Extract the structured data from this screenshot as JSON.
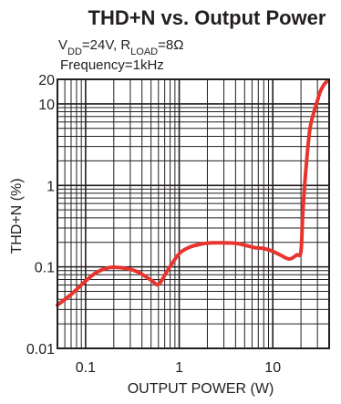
{
  "chart_data": {
    "type": "line",
    "title": "THD+N vs. Output Power",
    "conditions": {
      "supply_prefix": "V",
      "supply_sub": "DD",
      "supply_value": "=24V, ",
      "load_prefix": "R",
      "load_sub": "LOAD",
      "load_value": "=8Ω",
      "frequency": "Frequency=1kHz"
    },
    "xlabel": "OUTPUT POWER (W)",
    "ylabel": "THD+N (%)",
    "x_scale": "log",
    "y_scale": "log",
    "xlim": [
      0.05,
      40
    ],
    "ylim": [
      0.01,
      20
    ],
    "x_tick_labels": [
      {
        "value": 0.1,
        "label": "0.1"
      },
      {
        "value": 1,
        "label": "1"
      },
      {
        "value": 10,
        "label": "10"
      }
    ],
    "y_tick_labels": [
      {
        "value": 0.01,
        "label": "0.01"
      },
      {
        "value": 0.1,
        "label": "0.1"
      },
      {
        "value": 1,
        "label": "1"
      },
      {
        "value": 10,
        "label": "10"
      },
      {
        "value": 20,
        "label": "20"
      }
    ],
    "grid": true,
    "series": [
      {
        "color": "#e8342d",
        "x": [
          0.05,
          0.07,
          0.1,
          0.13,
          0.18,
          0.25,
          0.35,
          0.5,
          0.6,
          0.75,
          1.0,
          1.3,
          1.7,
          2.2,
          3,
          4,
          5,
          6.5,
          8,
          10,
          12,
          15,
          18,
          20,
          21,
          23,
          25,
          28,
          30,
          32,
          35,
          38
        ],
        "y": [
          0.034,
          0.046,
          0.067,
          0.085,
          0.098,
          0.097,
          0.088,
          0.069,
          0.061,
          0.09,
          0.145,
          0.175,
          0.19,
          0.197,
          0.197,
          0.195,
          0.185,
          0.172,
          0.168,
          0.155,
          0.14,
          0.125,
          0.14,
          0.155,
          0.5,
          2.0,
          5.0,
          8.5,
          11.0,
          14.0,
          17.0,
          19.0
        ]
      }
    ]
  }
}
